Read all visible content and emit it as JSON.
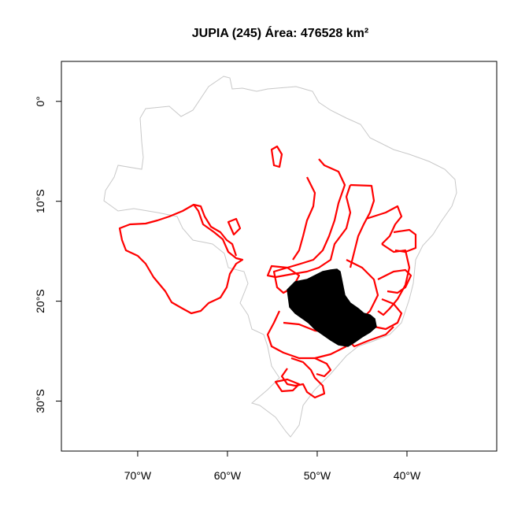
{
  "chart_data": {
    "type": "map",
    "title": "JUPIA (245) Área: 476528 km²",
    "xlim": [
      -78.5,
      -30.0
    ],
    "ylim": [
      -35.0,
      4.0
    ],
    "x_ticks": [
      {
        "value": -70,
        "label": "70°W"
      },
      {
        "value": -60,
        "label": "60°W"
      },
      {
        "value": -50,
        "label": "50°W"
      },
      {
        "value": -40,
        "label": "40°W"
      }
    ],
    "y_ticks": [
      {
        "value": 0,
        "label": "0°"
      },
      {
        "value": -10,
        "label": "10°S"
      },
      {
        "value": -20,
        "label": "20°S"
      },
      {
        "value": -30,
        "label": "30°S"
      }
    ],
    "layers": {
      "country_outline": {
        "color": "#c8c8c8"
      },
      "sub_basins": {
        "color": "#ff0000"
      },
      "selected_basin": {
        "name": "JUPIA",
        "id": 245,
        "area_km2": 476528,
        "color": "#000000"
      }
    }
  }
}
